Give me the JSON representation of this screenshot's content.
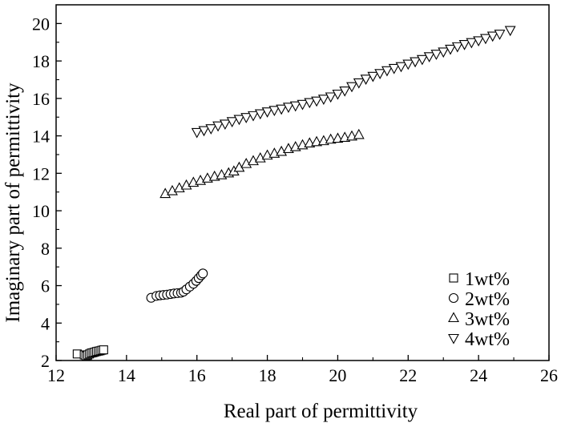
{
  "chart_data": {
    "type": "scatter",
    "xlabel": "Real part of permittivity",
    "ylabel": "Imaginary part of permittivity",
    "xlim": [
      12,
      26
    ],
    "ylim": [
      2,
      21
    ],
    "xticks": [
      12,
      14,
      16,
      18,
      20,
      22,
      24,
      26
    ],
    "yticks": [
      2,
      4,
      6,
      8,
      10,
      12,
      14,
      16,
      18,
      20
    ],
    "legend_position": "bottom-right",
    "series": [
      {
        "name": "1wt%",
        "marker": "square",
        "points": [
          [
            12.6,
            2.35
          ],
          [
            12.8,
            2.3
          ],
          [
            12.85,
            2.25
          ],
          [
            12.9,
            2.3
          ],
          [
            12.95,
            2.35
          ],
          [
            13.0,
            2.4
          ],
          [
            13.05,
            2.42
          ],
          [
            13.1,
            2.45
          ],
          [
            13.15,
            2.48
          ],
          [
            13.2,
            2.5
          ],
          [
            13.25,
            2.52
          ],
          [
            13.3,
            2.55
          ],
          [
            13.35,
            2.57
          ]
        ]
      },
      {
        "name": "2wt%",
        "marker": "circle",
        "points": [
          [
            14.7,
            5.35
          ],
          [
            14.85,
            5.45
          ],
          [
            14.95,
            5.48
          ],
          [
            15.05,
            5.5
          ],
          [
            15.15,
            5.52
          ],
          [
            15.25,
            5.55
          ],
          [
            15.35,
            5.58
          ],
          [
            15.45,
            5.6
          ],
          [
            15.55,
            5.62
          ],
          [
            15.62,
            5.68
          ],
          [
            15.7,
            5.8
          ],
          [
            15.8,
            5.95
          ],
          [
            15.9,
            6.1
          ],
          [
            15.98,
            6.25
          ],
          [
            16.05,
            6.4
          ],
          [
            16.12,
            6.55
          ],
          [
            16.17,
            6.65
          ]
        ]
      },
      {
        "name": "3wt%",
        "marker": "triangle-up",
        "points": [
          [
            15.1,
            10.9
          ],
          [
            15.3,
            11.05
          ],
          [
            15.5,
            11.2
          ],
          [
            15.7,
            11.35
          ],
          [
            15.9,
            11.5
          ],
          [
            16.1,
            11.6
          ],
          [
            16.3,
            11.72
          ],
          [
            16.5,
            11.82
          ],
          [
            16.7,
            11.9
          ],
          [
            16.9,
            12.0
          ],
          [
            17.05,
            12.1
          ],
          [
            17.2,
            12.3
          ],
          [
            17.4,
            12.5
          ],
          [
            17.6,
            12.65
          ],
          [
            17.8,
            12.8
          ],
          [
            18.0,
            12.95
          ],
          [
            18.2,
            13.05
          ],
          [
            18.4,
            13.15
          ],
          [
            18.6,
            13.3
          ],
          [
            18.8,
            13.4
          ],
          [
            19.0,
            13.5
          ],
          [
            19.2,
            13.6
          ],
          [
            19.4,
            13.67
          ],
          [
            19.6,
            13.72
          ],
          [
            19.8,
            13.8
          ],
          [
            20.0,
            13.85
          ],
          [
            20.2,
            13.9
          ],
          [
            20.4,
            13.97
          ],
          [
            20.6,
            14.05
          ]
        ]
      },
      {
        "name": "4wt%",
        "marker": "triangle-down",
        "points": [
          [
            16.0,
            14.2
          ],
          [
            16.2,
            14.3
          ],
          [
            16.4,
            14.4
          ],
          [
            16.6,
            14.55
          ],
          [
            16.8,
            14.65
          ],
          [
            17.0,
            14.78
          ],
          [
            17.2,
            14.9
          ],
          [
            17.4,
            15.0
          ],
          [
            17.6,
            15.1
          ],
          [
            17.8,
            15.2
          ],
          [
            18.0,
            15.3
          ],
          [
            18.2,
            15.38
          ],
          [
            18.4,
            15.45
          ],
          [
            18.6,
            15.55
          ],
          [
            18.8,
            15.62
          ],
          [
            19.0,
            15.7
          ],
          [
            19.2,
            15.8
          ],
          [
            19.4,
            15.88
          ],
          [
            19.6,
            15.98
          ],
          [
            19.8,
            16.1
          ],
          [
            20.0,
            16.25
          ],
          [
            20.2,
            16.42
          ],
          [
            20.4,
            16.65
          ],
          [
            20.6,
            16.85
          ],
          [
            20.8,
            17.05
          ],
          [
            21.0,
            17.2
          ],
          [
            21.2,
            17.35
          ],
          [
            21.4,
            17.5
          ],
          [
            21.6,
            17.62
          ],
          [
            21.8,
            17.72
          ],
          [
            22.0,
            17.85
          ],
          [
            22.2,
            17.98
          ],
          [
            22.4,
            18.1
          ],
          [
            22.6,
            18.25
          ],
          [
            22.8,
            18.38
          ],
          [
            23.0,
            18.5
          ],
          [
            23.2,
            18.65
          ],
          [
            23.4,
            18.78
          ],
          [
            23.6,
            18.9
          ],
          [
            23.8,
            19.0
          ],
          [
            24.0,
            19.1
          ],
          [
            24.2,
            19.22
          ],
          [
            24.4,
            19.35
          ],
          [
            24.6,
            19.45
          ],
          [
            24.9,
            19.65
          ]
        ]
      }
    ]
  }
}
